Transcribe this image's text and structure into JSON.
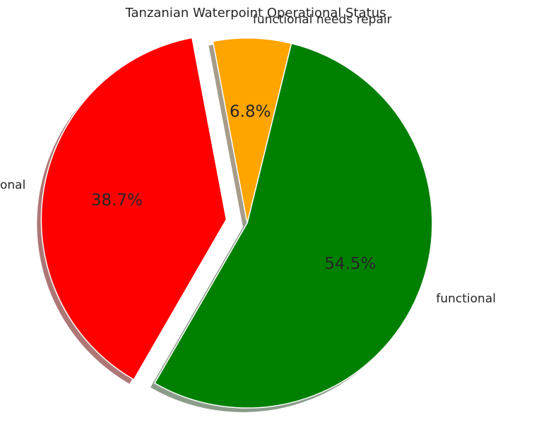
{
  "chart_data": {
    "type": "pie",
    "title": "Tanzanian Waterpoint Operational Status",
    "categories": [
      "functional",
      "functional needs repair",
      "non functional"
    ],
    "values": [
      54.5,
      6.8,
      38.7
    ],
    "value_labels": [
      "54.5%",
      "6.8%",
      "38.7%"
    ],
    "colors": [
      "#008000",
      "#FFA500",
      "#FF0000"
    ],
    "exploded": [
      false,
      false,
      true
    ],
    "shadow": true,
    "start_angle": 240,
    "counterclockwise": true,
    "legend": false
  }
}
